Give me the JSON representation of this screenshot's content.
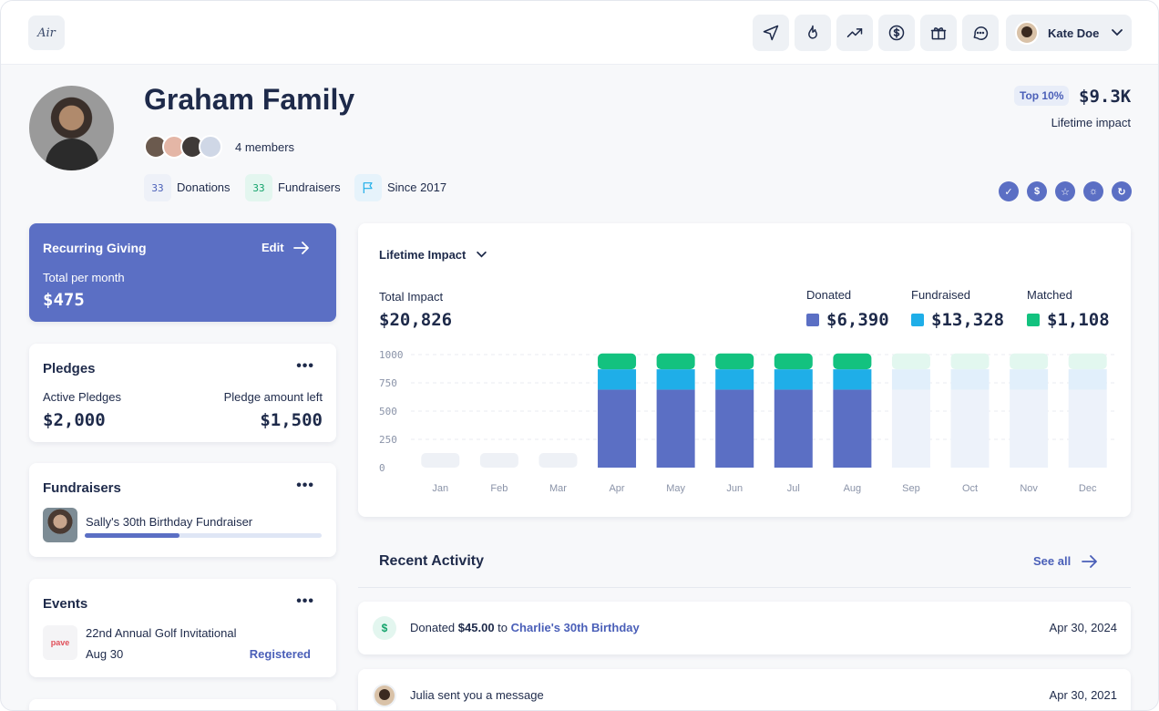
{
  "app": {
    "logo_text": "Air"
  },
  "header": {
    "nav_icons": [
      "send-icon",
      "flame-icon",
      "trending-up-icon",
      "dollar-icon",
      "gift-icon",
      "chat-icon"
    ],
    "user_name": "Kate Doe"
  },
  "profile": {
    "name": "Graham Family",
    "members_label": "4 members",
    "donations_count": "33",
    "donations_label": "Donations",
    "fundraisers_count": "33",
    "fundraisers_label": "Fundraisers",
    "since_label": "Since 2017",
    "top_badge": "Top 10%",
    "lifetime_value": "$9.3K",
    "lifetime_label": "Lifetime impact",
    "achievements": [
      "check-badge-icon",
      "dollar-badge-icon",
      "star-badge-icon",
      "sun-badge-icon",
      "refresh-badge-icon"
    ]
  },
  "recurring": {
    "title": "Recurring Giving",
    "edit_label": "Edit",
    "subtitle": "Total per month",
    "amount": "$475"
  },
  "pledges": {
    "title": "Pledges",
    "active_label": "Active Pledges",
    "active_value": "$2,000",
    "left_label": "Pledge amount left",
    "left_value": "$1,500"
  },
  "fundraisers": {
    "title": "Fundraisers",
    "item_name": "Sally's 30th Birthday Fundraiser",
    "progress": 0.4
  },
  "events": {
    "title": "Events",
    "item_name": "22nd Annual Golf Invitational",
    "item_logo_text": "pave",
    "item_date": "Aug 30",
    "item_status": "Registered"
  },
  "impact": {
    "selector_label": "Lifetime Impact",
    "total_label": "Total Impact",
    "total_value": "$20,826",
    "legend": [
      {
        "label": "Donated",
        "value": "$6,390",
        "color": "#5b6fc4"
      },
      {
        "label": "Fundraised",
        "value": "$13,328",
        "color": "#1faee8"
      },
      {
        "label": "Matched",
        "value": "$1,108",
        "color": "#13c27f"
      }
    ]
  },
  "chart_data": {
    "type": "bar",
    "title": "Lifetime Impact",
    "categories": [
      "Jan",
      "Feb",
      "Mar",
      "Apr",
      "May",
      "Jun",
      "Jul",
      "Aug",
      "Sep",
      "Oct",
      "Nov",
      "Dec"
    ],
    "series": [
      {
        "name": "Donated",
        "values": [
          0,
          0,
          0,
          690,
          690,
          690,
          690,
          690,
          690,
          690,
          690,
          690
        ]
      },
      {
        "name": "Fundraised",
        "values": [
          0,
          0,
          0,
          180,
          180,
          180,
          180,
          180,
          180,
          180,
          180,
          180
        ]
      },
      {
        "name": "Matched",
        "values": [
          0,
          0,
          0,
          140,
          140,
          140,
          140,
          140,
          140,
          140,
          140,
          140
        ]
      }
    ],
    "projected_months": [
      "Sep",
      "Oct",
      "Nov",
      "Dec"
    ],
    "empty_months": [
      "Jan",
      "Feb",
      "Mar"
    ],
    "ylim": [
      0,
      1000
    ],
    "yticks": [
      1000,
      750,
      500,
      250,
      0
    ],
    "grid": true,
    "xlabel": "",
    "ylabel": ""
  },
  "activity": {
    "title": "Recent Activity",
    "see_all": "See all",
    "items": [
      {
        "prefix": "Donated",
        "amount": "$45.00",
        "mid": "to",
        "link": "Charlie's 30th Birthday",
        "date": "Apr 30, 2024"
      },
      {
        "text": "Julia sent you a message",
        "date": "Apr 30, 2021"
      }
    ]
  }
}
